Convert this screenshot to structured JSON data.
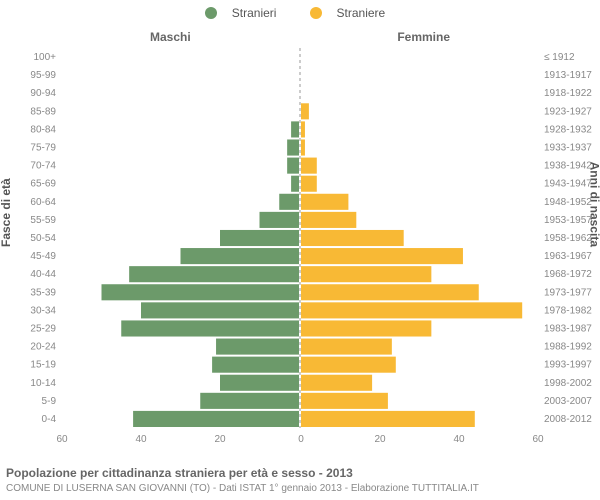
{
  "legend": {
    "male": "Stranieri",
    "female": "Straniere"
  },
  "colors": {
    "male": "#6c9a6a",
    "female": "#f8b935",
    "axis": "#888",
    "centerline": "#999"
  },
  "headers": {
    "left": "Maschi",
    "right": "Femmine"
  },
  "axis_titles": {
    "left": "Fasce di età",
    "right": "Anni di nascita"
  },
  "chart": {
    "type": "population-pyramid",
    "xmax": 60,
    "xtick_step": 20,
    "bar_gap": 1,
    "rows": [
      {
        "age": "100+",
        "birth": "≤ 1912",
        "m": 0,
        "f": 0
      },
      {
        "age": "95-99",
        "birth": "1913-1917",
        "m": 0,
        "f": 0
      },
      {
        "age": "90-94",
        "birth": "1918-1922",
        "m": 0,
        "f": 0
      },
      {
        "age": "85-89",
        "birth": "1923-1927",
        "m": 0,
        "f": 2
      },
      {
        "age": "80-84",
        "birth": "1928-1932",
        "m": 2,
        "f": 1
      },
      {
        "age": "75-79",
        "birth": "1933-1937",
        "m": 3,
        "f": 1
      },
      {
        "age": "70-74",
        "birth": "1938-1942",
        "m": 3,
        "f": 4
      },
      {
        "age": "65-69",
        "birth": "1943-1947",
        "m": 2,
        "f": 4
      },
      {
        "age": "60-64",
        "birth": "1948-1952",
        "m": 5,
        "f": 12
      },
      {
        "age": "55-59",
        "birth": "1953-1957",
        "m": 10,
        "f": 14
      },
      {
        "age": "50-54",
        "birth": "1958-1962",
        "m": 20,
        "f": 26
      },
      {
        "age": "45-49",
        "birth": "1963-1967",
        "m": 30,
        "f": 41
      },
      {
        "age": "40-44",
        "birth": "1968-1972",
        "m": 43,
        "f": 33
      },
      {
        "age": "35-39",
        "birth": "1973-1977",
        "m": 50,
        "f": 45
      },
      {
        "age": "30-34",
        "birth": "1978-1982",
        "m": 40,
        "f": 56
      },
      {
        "age": "25-29",
        "birth": "1983-1987",
        "m": 45,
        "f": 33
      },
      {
        "age": "20-24",
        "birth": "1988-1992",
        "m": 21,
        "f": 23
      },
      {
        "age": "15-19",
        "birth": "1993-1997",
        "m": 22,
        "f": 24
      },
      {
        "age": "10-14",
        "birth": "1998-2002",
        "m": 20,
        "f": 18
      },
      {
        "age": "5-9",
        "birth": "2003-2007",
        "m": 25,
        "f": 22
      },
      {
        "age": "0-4",
        "birth": "2008-2012",
        "m": 42,
        "f": 44
      }
    ]
  },
  "footer": {
    "line1": "Popolazione per cittadinanza straniera per età e sesso - 2013",
    "line2": "COMUNE DI LUSERNA SAN GIOVANNI (TO) - Dati ISTAT 1° gennaio 2013 - Elaborazione TUTTITALIA.IT"
  }
}
